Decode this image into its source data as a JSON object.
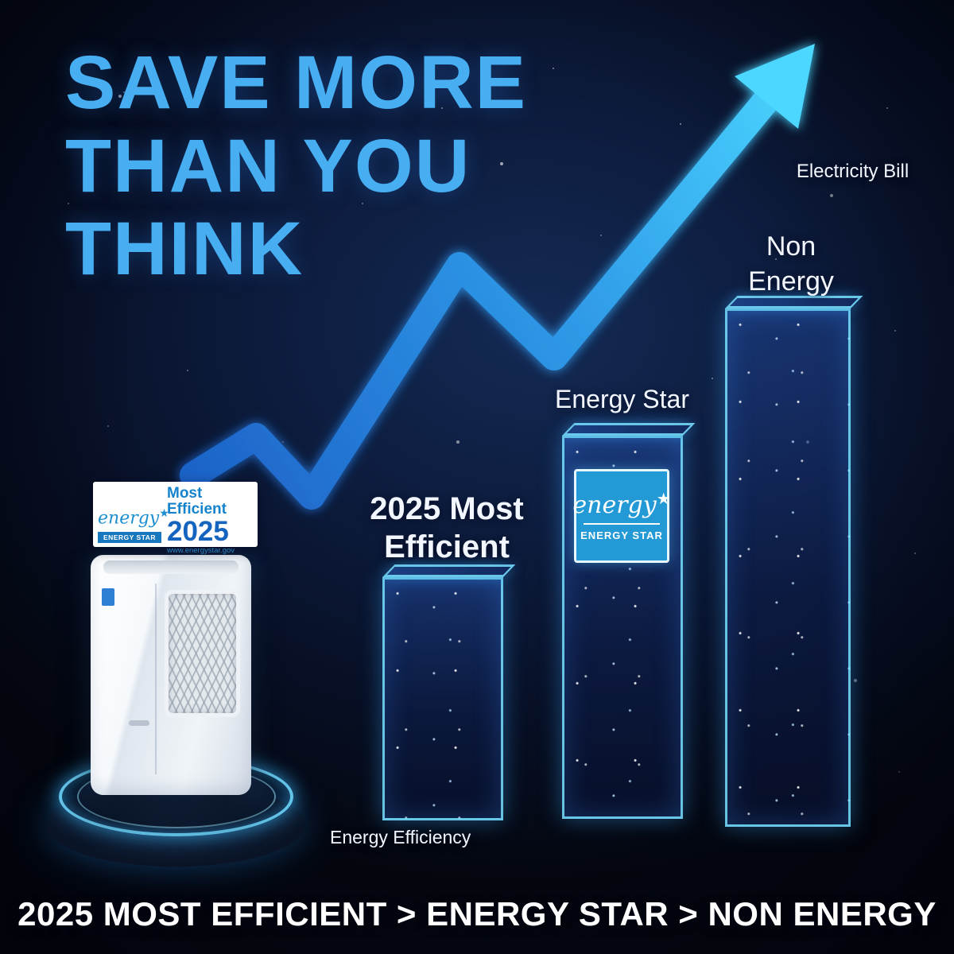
{
  "palette": {
    "background_deep": "#04070f",
    "background_mid": "#0b1a38",
    "headline_blue": "#47aef2",
    "arrow_start": "#1d63c8",
    "arrow_end": "#4bd7ff",
    "bar_edge_cyan": "#74e2ff",
    "energy_star_blue": "#2399d6",
    "text_white": "#f2f7ff"
  },
  "headline": {
    "lines": [
      "SAVE MORE",
      "THAN YOU",
      "THINK"
    ]
  },
  "chart_data": {
    "type": "bar",
    "categories": [
      "2025 Most Efficient",
      "Energy Star",
      "Non Energy"
    ],
    "values": [
      47,
      74,
      100
    ],
    "value_units": "relative electricity bill, % of tallest bar (estimated from bar heights, no numeric axis shown)",
    "title": "Electricity bill comparison by efficiency certification",
    "xlabel": "Energy Efficiency",
    "ylabel": "Electricity Bill",
    "ylim": [
      0,
      100
    ],
    "legend": "none"
  },
  "chart": {
    "y_axis_label": "Electricity Bill",
    "x_axis_label": "Energy Efficiency",
    "bar_labels": {
      "most_efficient_line1": "2025 Most",
      "most_efficient_line2": "Efficient",
      "energy_star": "Energy Star",
      "non_energy_line1": "Non",
      "non_energy_line2": "Energy"
    }
  },
  "energy_star_badge": {
    "logo_word": "energy",
    "logo_star": "★",
    "brand": "ENERGY STAR"
  },
  "most_efficient_badge": {
    "logo_word": "energy",
    "logo_star": "★",
    "brand": "ENERGY STAR",
    "title": "Most Efficient",
    "year": "2025",
    "url": "www.energystar.gov"
  },
  "footer": {
    "text": "2025 MOST EFFICIENT > ENERGY STAR > NON ENERGY"
  }
}
